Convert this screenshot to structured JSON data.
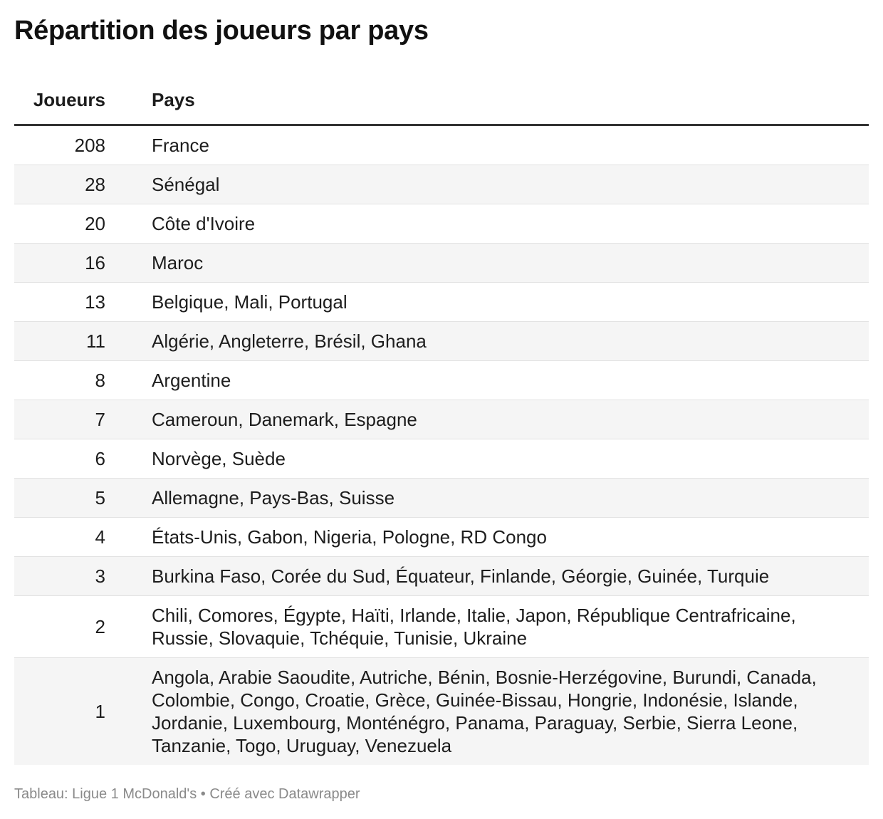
{
  "title": "Répartition des joueurs par pays",
  "chart_data": {
    "type": "table",
    "columns": [
      "Joueurs",
      "Pays"
    ],
    "rows": [
      {
        "players": "208",
        "countries": "France"
      },
      {
        "players": "28",
        "countries": "Sénégal"
      },
      {
        "players": "20",
        "countries": "Côte d'Ivoire"
      },
      {
        "players": "16",
        "countries": "Maroc"
      },
      {
        "players": "13",
        "countries": "Belgique, Mali, Portugal"
      },
      {
        "players": "11",
        "countries": "Algérie, Angleterre, Brésil, Ghana"
      },
      {
        "players": "8",
        "countries": "Argentine"
      },
      {
        "players": "7",
        "countries": "Cameroun, Danemark, Espagne"
      },
      {
        "players": "6",
        "countries": "Norvège, Suède"
      },
      {
        "players": "5",
        "countries": "Allemagne, Pays-Bas, Suisse"
      },
      {
        "players": "4",
        "countries": "États-Unis, Gabon, Nigeria, Pologne, RD Congo"
      },
      {
        "players": "3",
        "countries": "Burkina Faso, Corée du Sud, Équateur, Finlande, Géorgie, Guinée, Turquie"
      },
      {
        "players": "2",
        "countries": "Chili, Comores, Égypte, Haïti, Irlande, Italie, Japon, République Centrafricaine, Russie, Slovaquie, Tchéquie, Tunisie, Ukraine"
      },
      {
        "players": "1",
        "countries": "Angola, Arabie Saoudite, Autriche, Bénin, Bosnie-Herzégovine, Burundi, Canada, Colombie, Congo, Croatie, Grèce, Guinée-Bissau, Hongrie, Indonésie, Islande, Jordanie, Luxembourg, Monténégro, Panama, Paraguay, Serbie, Sierra Leone, Tanzanie, Togo, Uruguay, Venezuela"
      }
    ]
  },
  "footer": "Tableau: Ligue 1 McDonald's • Créé avec Datawrapper"
}
